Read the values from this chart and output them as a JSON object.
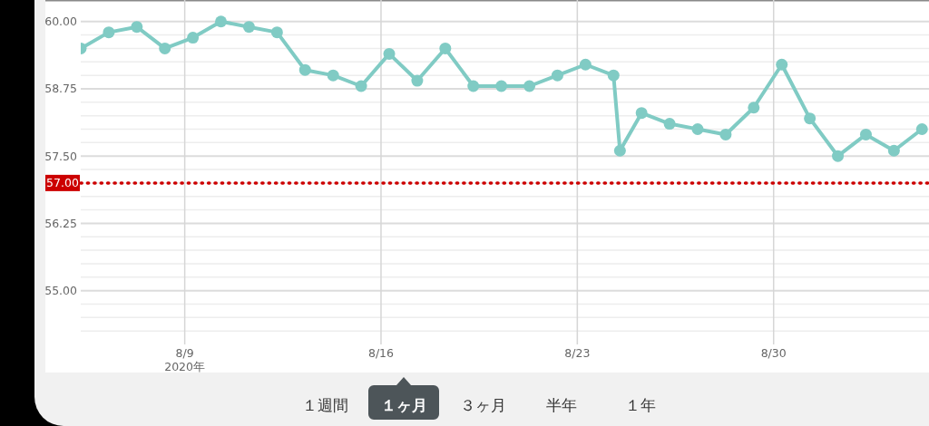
{
  "chart_data": {
    "type": "line",
    "x": [
      "2020-08-05T07:00",
      "2020-08-06T07:00",
      "2020-08-07T07:00",
      "2020-08-08T07:00",
      "2020-08-09T07:00",
      "2020-08-10T07:00",
      "2020-08-11T07:00",
      "2020-08-12T07:00",
      "2020-08-13T07:00",
      "2020-08-14T07:00",
      "2020-08-15T07:00",
      "2020-08-16T07:00",
      "2020-08-17T07:00",
      "2020-08-18T07:00",
      "2020-08-19T07:00",
      "2020-08-20T07:00",
      "2020-08-21T07:00",
      "2020-08-22T07:00",
      "2020-08-23T07:00",
      "2020-08-24T07:00",
      "2020-08-24T12:30",
      "2020-08-25T07:00",
      "2020-08-26T07:00",
      "2020-08-27T07:00",
      "2020-08-28T07:00",
      "2020-08-29T07:00",
      "2020-08-30T07:00",
      "2020-08-31T07:00",
      "2020-09-01T07:00",
      "2020-09-02T07:00",
      "2020-09-03T07:00",
      "2020-09-04T07:00"
    ],
    "series": [
      {
        "color": "#80cbc4",
        "values": [
          59.5,
          59.8,
          59.9,
          59.5,
          59.7,
          60.0,
          59.9,
          59.8,
          59.1,
          59.0,
          58.8,
          59.4,
          58.9,
          59.5,
          58.8,
          58.8,
          58.8,
          59.0,
          59.2,
          59.0,
          57.6,
          58.3,
          58.1,
          58.0,
          57.9,
          58.4,
          59.2,
          58.2,
          57.5,
          57.9,
          57.6,
          58.0
        ]
      }
    ],
    "xlim": [
      "2020-08-05T07:00",
      "2020-09-04T13:00"
    ],
    "xticks": [
      {
        "value": "2020-08-09",
        "label": "8/9\n2020年"
      },
      {
        "value": "2020-08-16",
        "label": "8/16"
      },
      {
        "value": "2020-08-23",
        "label": "8/23"
      },
      {
        "value": "2020-08-30",
        "label": "8/30"
      }
    ],
    "ylim": [
      54,
      60.4
    ],
    "yticks": [
      {
        "value": 54.25,
        "label": null
      },
      {
        "value": 54.5,
        "label": null
      },
      {
        "value": 54.75,
        "label": null
      },
      {
        "value": 55,
        "label": "55.00"
      },
      {
        "value": 55.25,
        "label": null
      },
      {
        "value": 55.5,
        "label": null
      },
      {
        "value": 55.75,
        "label": null
      },
      {
        "value": 56,
        "label": null
      },
      {
        "value": 56.25,
        "label": "56.25"
      },
      {
        "value": 56.5,
        "label": null
      },
      {
        "value": 56.75,
        "label": null
      },
      {
        "value": 57,
        "label": null
      },
      {
        "value": 57.25,
        "label": null
      },
      {
        "value": 57.5,
        "label": "57.50"
      },
      {
        "value": 57.75,
        "label": null
      },
      {
        "value": 58,
        "label": null
      },
      {
        "value": 58.25,
        "label": null
      },
      {
        "value": 58.5,
        "label": null
      },
      {
        "value": 58.75,
        "label": "58.75"
      },
      {
        "value": 59,
        "label": null
      },
      {
        "value": 59.25,
        "label": null
      },
      {
        "value": 59.5,
        "label": null
      },
      {
        "value": 59.75,
        "label": null
      },
      {
        "value": 60,
        "label": "60.00"
      }
    ],
    "ref_lines": [
      {
        "axis": "y",
        "value": 57,
        "label": "57.00",
        "color": "#cc0000",
        "line_style": "dotted"
      }
    ],
    "grid": true,
    "marker": "circle",
    "line_style": "solid",
    "annotations": [
      "１週間",
      "１ヶ月",
      "３ヶ月",
      "半年",
      "１年"
    ]
  }
}
